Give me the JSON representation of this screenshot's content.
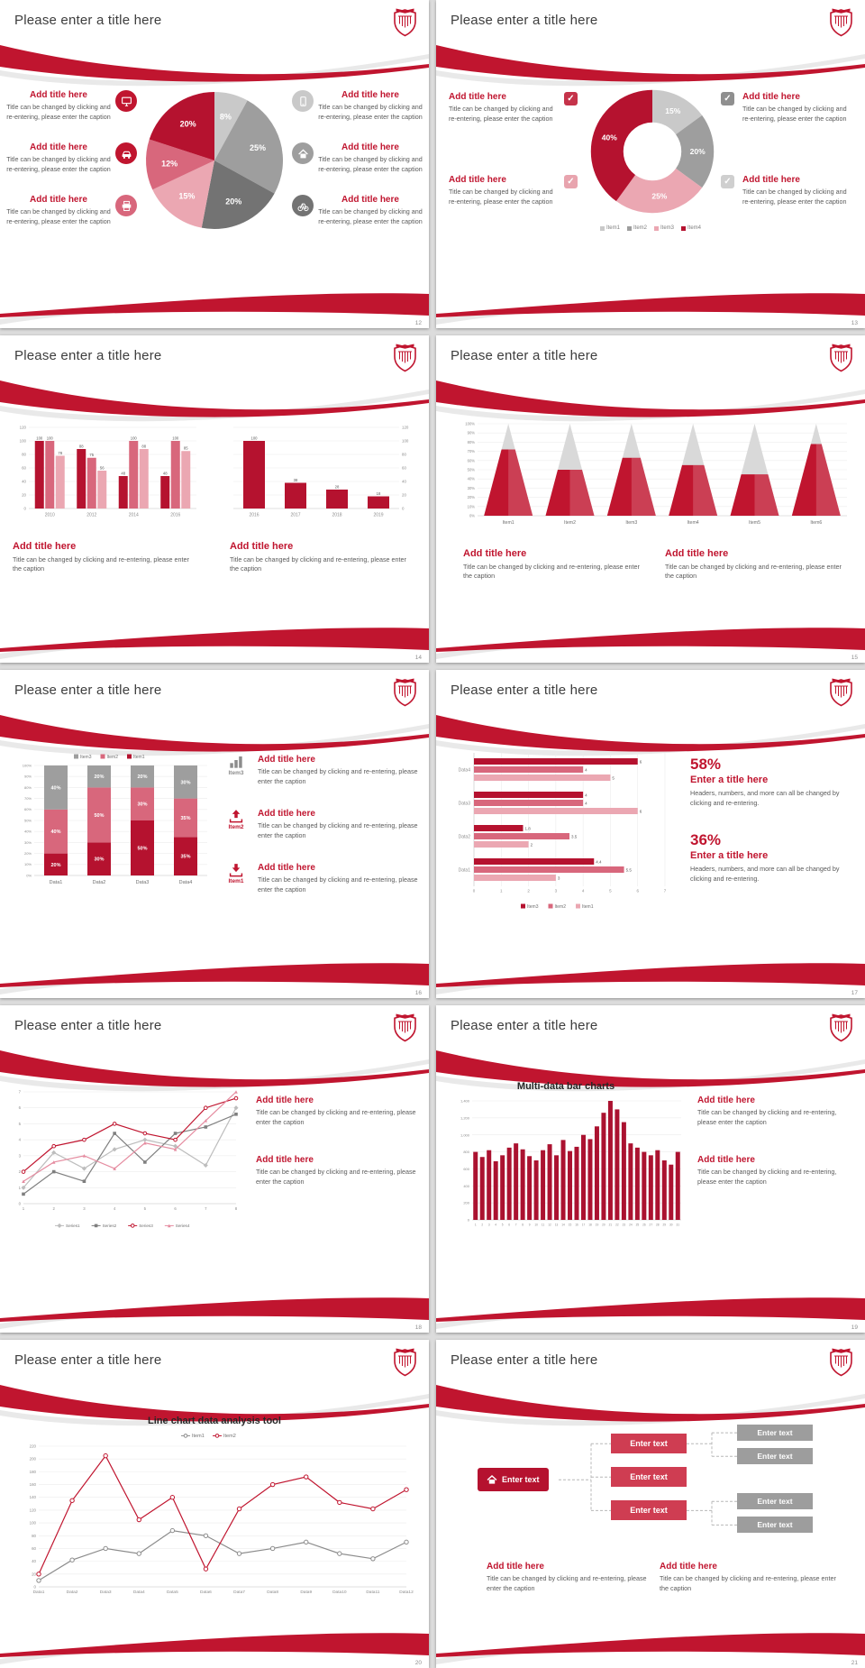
{
  "common": {
    "slide_title": "Please enter a title here",
    "add_title": "Add title here",
    "caption": "Title can be changed by clicking and re-entering, please enter the caption"
  },
  "glyphs": {
    "check": "✓"
  },
  "colors": {
    "accent": "#c0152f",
    "accent_light": "#d8677c",
    "accent_pale": "#eba7b2",
    "gray_dark": "#737373",
    "gray": "#9e9e9e",
    "gray_light": "#c9c9c9"
  },
  "slides": {
    "s12": {
      "number": "12"
    },
    "s13": {
      "number": "13"
    },
    "s14": {
      "number": "14"
    },
    "s15": {
      "number": "15"
    },
    "s16": {
      "number": "16",
      "icon_items": [
        {
          "label": "Item3",
          "color": "#8c8c8c",
          "icon": "bar-chart"
        },
        {
          "label": "Item2",
          "color": "#c0152f",
          "icon": "upload"
        },
        {
          "label": "Item1",
          "color": "#c0152f",
          "icon": "download"
        }
      ]
    },
    "s17": {
      "number": "17",
      "stats": [
        {
          "value": "58%",
          "title": "Enter a title here",
          "caption": "Headers, numbers, and more can all be changed by clicking and re-entering."
        },
        {
          "value": "36%",
          "title": "Enter a title here",
          "caption": "Headers, numbers, and more can all be changed by clicking and re-entering."
        }
      ]
    },
    "s18": {
      "number": "18"
    },
    "s19": {
      "number": "19"
    },
    "s20": {
      "number": "20"
    },
    "s21": {
      "number": "21",
      "org": {
        "hub": "Enter text",
        "nodes": [
          "Enter text",
          "Enter text",
          "Enter text"
        ],
        "leaves": [
          "Enter text",
          "Enter text",
          "Enter text",
          "Enter text"
        ]
      }
    }
  },
  "chart_data": [
    {
      "id": "pie-usage",
      "type": "pie",
      "slide": "12",
      "slices": [
        {
          "label": "8%",
          "value": 8,
          "color": "#c9c9c9"
        },
        {
          "label": "25%",
          "value": 25,
          "color": "#9e9e9e"
        },
        {
          "label": "20%",
          "value": 20,
          "color": "#737373"
        },
        {
          "label": "15%",
          "value": 15,
          "color": "#eba7b2"
        },
        {
          "label": "12%",
          "value": 12,
          "color": "#d8677c"
        },
        {
          "label": "20%",
          "value": 20,
          "color": "#b5122f"
        }
      ]
    },
    {
      "id": "donut-items",
      "type": "donut",
      "slide": "13",
      "slices": [
        {
          "label": "15%",
          "value": 15,
          "color": "#c9c9c9"
        },
        {
          "label": "20%",
          "value": 20,
          "color": "#9e9e9e"
        },
        {
          "label": "25%",
          "value": 25,
          "color": "#eba7b2"
        },
        {
          "label": "40%",
          "value": 40,
          "color": "#b5122f"
        }
      ],
      "legend": [
        {
          "label": "Item1",
          "color": "#c9c9c9"
        },
        {
          "label": "Item2",
          "color": "#9e9e9e"
        },
        {
          "label": "Item3",
          "color": "#eba7b2"
        },
        {
          "label": "Item4",
          "color": "#b5122f"
        }
      ]
    },
    {
      "id": "bar-years-grouped",
      "type": "bar",
      "slide": "14",
      "categories": [
        "2010",
        "2012",
        "2014",
        "2016"
      ],
      "series": [
        {
          "name": "Series1",
          "color": "#b5122f",
          "values": [
            100,
            88,
            48,
            48
          ]
        },
        {
          "name": "Series2",
          "color": "#d8677c",
          "values": [
            100,
            75,
            100,
            100
          ]
        },
        {
          "name": "Series3",
          "color": "#eba7b2",
          "values": [
            78,
            56,
            88,
            85
          ]
        }
      ],
      "ylim": [
        0,
        120
      ],
      "ystep": 20,
      "axis_side": "left",
      "value_labels": true
    },
    {
      "id": "bar-years-single",
      "type": "bar",
      "slide": "14",
      "categories": [
        "2016",
        "2017",
        "2018",
        "2019"
      ],
      "series": [
        {
          "name": "Series1",
          "color": "#b5122f",
          "values": [
            100,
            38,
            28,
            18
          ]
        }
      ],
      "ylim": [
        0,
        120
      ],
      "ystep": 20,
      "axis_side": "right",
      "value_labels": true
    },
    {
      "id": "cone-items",
      "type": "cone",
      "slide": "15",
      "categories": [
        "Item1",
        "Item2",
        "Item3",
        "Item4",
        "Item5",
        "Item6"
      ],
      "values": [
        72,
        50,
        63,
        55,
        45,
        78
      ],
      "ylim": [
        0,
        100
      ],
      "ystep": 10,
      "unit": "%"
    },
    {
      "id": "stacked-data",
      "type": "stacked_bar",
      "slide": "16",
      "categories": [
        "Data1",
        "Data2",
        "Data3",
        "Data4"
      ],
      "series": [
        {
          "name": "Item1",
          "color": "#b5122f",
          "values": [
            20,
            30,
            50,
            35
          ]
        },
        {
          "name": "Item2",
          "color": "#d8677c",
          "values": [
            40,
            50,
            30,
            35
          ]
        },
        {
          "name": "Item3",
          "color": "#9e9e9e",
          "values": [
            40,
            20,
            20,
            30
          ]
        }
      ],
      "ylim": [
        0,
        100
      ],
      "ystep": 10,
      "unit": "%",
      "value_labels": true
    },
    {
      "id": "hbar-data",
      "type": "hbar",
      "slide": "17",
      "categories": [
        "Data1",
        "Data2",
        "Data3",
        "Data4"
      ],
      "series": [
        {
          "name": "Item3",
          "color": "#b5122f",
          "values": [
            4.4,
            1.8,
            4,
            6
          ]
        },
        {
          "name": "Item2",
          "color": "#d8677c",
          "values": [
            5.5,
            3.5,
            4,
            4
          ]
        },
        {
          "name": "Item1",
          "color": "#eba7b2",
          "values": [
            3,
            2,
            6,
            5
          ]
        }
      ],
      "xlim": [
        0,
        7
      ],
      "xstep": 1,
      "value_labels": true
    },
    {
      "id": "line-series4",
      "type": "line",
      "slide": "18",
      "x": [
        "1",
        "2",
        "3",
        "4",
        "5",
        "6",
        "7",
        "8"
      ],
      "series": [
        {
          "name": "Series1",
          "color": "#bdbdbd",
          "marker": "diamond",
          "values": [
            1,
            3.2,
            2.2,
            3.4,
            4,
            3.6,
            2.4,
            6
          ]
        },
        {
          "name": "Series2",
          "color": "#7f7f7f",
          "marker": "square",
          "values": [
            0.6,
            2,
            1.4,
            4.4,
            2.6,
            4.4,
            4.8,
            5.6
          ]
        },
        {
          "name": "Series3",
          "color": "#c0152f",
          "marker": "circle",
          "values": [
            2,
            3.6,
            4,
            5,
            4.4,
            4,
            6,
            6.6
          ]
        },
        {
          "name": "Series4",
          "color": "#e58ca0",
          "marker": "triangle",
          "values": [
            1.4,
            2.6,
            3,
            2.2,
            3.8,
            3.4,
            5.2,
            7
          ]
        }
      ],
      "ylim": [
        0,
        7
      ],
      "ystep": 1
    },
    {
      "id": "multibar",
      "type": "bar",
      "slide": "19",
      "title": "Multi-data bar charts",
      "categories": [
        "1",
        "2",
        "3",
        "4",
        "5",
        "6",
        "7",
        "8",
        "9",
        "10",
        "11",
        "12",
        "13",
        "14",
        "15",
        "16",
        "17",
        "18",
        "19",
        "20",
        "21",
        "22",
        "23",
        "24",
        "25",
        "26",
        "27",
        "28",
        "29",
        "30",
        "31"
      ],
      "series": [
        {
          "name": "Data",
          "color": "#ab1230",
          "values": [
            800,
            740,
            820,
            690,
            760,
            850,
            900,
            830,
            750,
            700,
            820,
            890,
            760,
            940,
            810,
            860,
            1000,
            950,
            1100,
            1260,
            1400,
            1300,
            1150,
            900,
            850,
            800,
            760,
            820,
            700,
            650,
            800
          ]
        }
      ],
      "ylim": [
        0,
        1400
      ],
      "ystep": 200,
      "axis_side": "left",
      "yformat": "comma",
      "value_labels": false
    },
    {
      "id": "line-analysis",
      "type": "line",
      "slide": "20",
      "title": "Line chart data analysis tool",
      "x": [
        "Data1",
        "Data2",
        "Data3",
        "Data4",
        "Data5",
        "Data6",
        "Data7",
        "Data8",
        "Data9",
        "Data10",
        "Data11",
        "Data12"
      ],
      "series": [
        {
          "name": "Item1",
          "color": "#8c8c8c",
          "marker": "circle",
          "values": [
            10,
            42,
            60,
            52,
            88,
            80,
            52,
            60,
            70,
            52,
            44,
            70
          ]
        },
        {
          "name": "Item2",
          "color": "#c0152f",
          "marker": "circle",
          "values": [
            20,
            135,
            205,
            105,
            140,
            28,
            122,
            160,
            172,
            132,
            122,
            152
          ]
        }
      ],
      "ylim": [
        0,
        220
      ],
      "ystep": 20,
      "legend_top": true
    }
  ]
}
